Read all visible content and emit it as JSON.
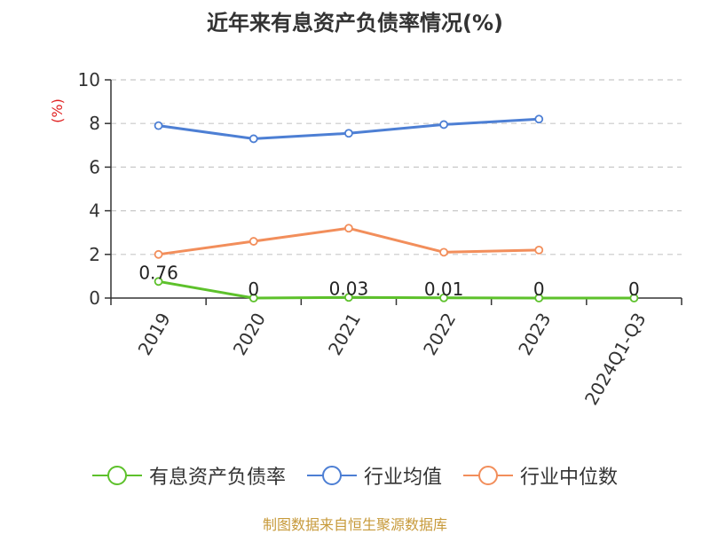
{
  "chart_data": {
    "type": "line",
    "title": "近年来有息资产负债率情况(%)",
    "ylabel": "(%)",
    "categories": [
      "2019",
      "2020",
      "2021",
      "2022",
      "2023",
      "2024Q1-Q3"
    ],
    "ylim": [
      0,
      10
    ],
    "yticks": [
      0,
      2,
      4,
      6,
      8,
      10
    ],
    "grid": true,
    "legend_position": "bottom",
    "series": [
      {
        "name": "有息资产负债率",
        "color": "#5dc12b",
        "values": [
          0.76,
          0,
          0.03,
          0.01,
          0,
          0
        ],
        "data_labels": [
          "0.76",
          "0",
          "0.03",
          "0.01",
          "0",
          "0"
        ]
      },
      {
        "name": "行业均值",
        "color": "#4d7fd4",
        "values": [
          7.9,
          7.3,
          7.55,
          7.95,
          8.2,
          null
        ],
        "data_labels": null
      },
      {
        "name": "行业中位数",
        "color": "#f28e5b",
        "values": [
          2.0,
          2.6,
          3.2,
          2.1,
          2.2,
          null
        ],
        "data_labels": null
      }
    ]
  },
  "source": "制图数据来自恒生聚源数据库"
}
